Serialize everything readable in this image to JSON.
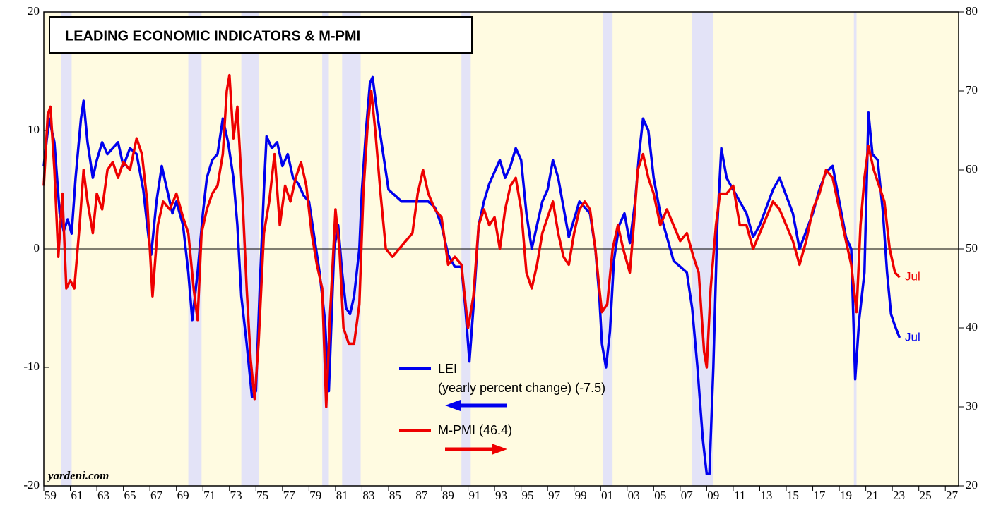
{
  "chart_data": {
    "type": "line",
    "title": "LEADING ECONOMIC INDICATORS & M-PMI",
    "source": "yardeni.com",
    "legend_text": [
      "LEI",
      "(yearly percent change) (-7.5)",
      "M-PMI (46.4)"
    ],
    "annotations": [
      "Jul",
      "Jul"
    ],
    "xlim": [
      1959,
      2028
    ],
    "xticks": [
      {
        "value": 1959,
        "label": "59"
      },
      {
        "value": 1961,
        "label": "61"
      },
      {
        "value": 1963,
        "label": "63"
      },
      {
        "value": 1965,
        "label": "65"
      },
      {
        "value": 1967,
        "label": "67"
      },
      {
        "value": 1969,
        "label": "69"
      },
      {
        "value": 1971,
        "label": "71"
      },
      {
        "value": 1973,
        "label": "73"
      },
      {
        "value": 1975,
        "label": "75"
      },
      {
        "value": 1977,
        "label": "77"
      },
      {
        "value": 1979,
        "label": "79"
      },
      {
        "value": 1981,
        "label": "81"
      },
      {
        "value": 1983,
        "label": "83"
      },
      {
        "value": 1985,
        "label": "85"
      },
      {
        "value": 1987,
        "label": "87"
      },
      {
        "value": 1989,
        "label": "89"
      },
      {
        "value": 1991,
        "label": "91"
      },
      {
        "value": 1993,
        "label": "93"
      },
      {
        "value": 1995,
        "label": "95"
      },
      {
        "value": 1997,
        "label": "97"
      },
      {
        "value": 1999,
        "label": "99"
      },
      {
        "value": 2001,
        "label": "01"
      },
      {
        "value": 2003,
        "label": "03"
      },
      {
        "value": 2005,
        "label": "05"
      },
      {
        "value": 2007,
        "label": "07"
      },
      {
        "value": 2009,
        "label": "09"
      },
      {
        "value": 2011,
        "label": "11"
      },
      {
        "value": 2013,
        "label": "13"
      },
      {
        "value": 2015,
        "label": "15"
      },
      {
        "value": 2017,
        "label": "17"
      },
      {
        "value": 2019,
        "label": "19"
      },
      {
        "value": 2021,
        "label": "21"
      },
      {
        "value": 2023,
        "label": "23"
      },
      {
        "value": 2025,
        "label": "25"
      },
      {
        "value": 2027,
        "label": "27"
      }
    ],
    "ylim": [
      -20,
      20
    ],
    "yticks": [
      -20,
      -10,
      0,
      10,
      20
    ],
    "y2lim": [
      20,
      80
    ],
    "y2ticks": [
      20,
      30,
      40,
      50,
      60,
      70,
      80
    ],
    "background_color": "#fffbe1",
    "recession_color": "#e3e3f7",
    "recessions": [
      [
        1960.3,
        1961.1
      ],
      [
        1969.9,
        1970.9
      ],
      [
        1973.9,
        1975.2
      ],
      [
        1980.0,
        1980.5
      ],
      [
        1981.5,
        1982.9
      ],
      [
        1990.5,
        1991.2
      ],
      [
        2001.2,
        2001.9
      ],
      [
        2007.9,
        2009.5
      ],
      [
        2020.1,
        2020.3
      ]
    ],
    "series": [
      {
        "name": "LEI",
        "color": "#0000ee",
        "axis": "y",
        "x": [
          1959.0,
          1959.4,
          1959.8,
          1960.2,
          1960.5,
          1960.8,
          1961.1,
          1961.4,
          1961.8,
          1962.0,
          1962.3,
          1962.7,
          1963.0,
          1963.4,
          1963.8,
          1964.2,
          1964.6,
          1965.0,
          1965.5,
          1966.0,
          1966.5,
          1966.9,
          1967.1,
          1967.5,
          1967.9,
          1968.3,
          1968.7,
          1969.0,
          1969.5,
          1969.9,
          1970.2,
          1970.6,
          1971.0,
          1971.3,
          1971.7,
          1972.1,
          1972.5,
          1972.9,
          1973.3,
          1973.6,
          1973.9,
          1974.3,
          1974.7,
          1975.0,
          1975.3,
          1975.6,
          1975.8,
          1976.2,
          1976.6,
          1977.0,
          1977.4,
          1977.8,
          1978.2,
          1978.6,
          1979.0,
          1979.4,
          1979.8,
          1980.2,
          1980.5,
          1980.9,
          1981.2,
          1981.5,
          1981.8,
          1982.1,
          1982.4,
          1982.8,
          1983.0,
          1983.3,
          1983.6,
          1983.8,
          1984.2,
          1984.6,
          1985.0,
          1985.5,
          1986.0,
          1986.5,
          1987.0,
          1987.5,
          1988.0,
          1988.5,
          1989.0,
          1989.5,
          1990.0,
          1990.5,
          1990.8,
          1991.1,
          1991.4,
          1991.8,
          1992.2,
          1992.6,
          1993.0,
          1993.4,
          1993.8,
          1994.2,
          1994.6,
          1995.0,
          1995.4,
          1995.8,
          1996.2,
          1996.6,
          1997.0,
          1997.4,
          1997.8,
          1998.2,
          1998.6,
          1999.0,
          1999.4,
          1999.8,
          2000.2,
          2000.6,
          2000.9,
          2001.1,
          2001.4,
          2001.7,
          2002.0,
          2002.4,
          2002.8,
          2003.2,
          2003.6,
          2003.9,
          2004.2,
          2004.6,
          2005.0,
          2005.5,
          2006.0,
          2006.5,
          2007.0,
          2007.5,
          2007.9,
          2008.3,
          2008.7,
          2009.0,
          2009.2,
          2009.5,
          2009.8,
          2010.1,
          2010.5,
          2011.0,
          2011.5,
          2012.0,
          2012.5,
          2013.0,
          2013.5,
          2014.0,
          2014.5,
          2015.0,
          2015.5,
          2016.0,
          2016.5,
          2017.0,
          2017.5,
          2018.0,
          2018.5,
          2019.0,
          2019.5,
          2019.9,
          2020.2,
          2020.5,
          2020.9,
          2021.2,
          2021.5,
          2021.9,
          2022.3,
          2022.6,
          2022.9,
          2023.2,
          2023.55
        ],
        "values": [
          7,
          11,
          9,
          3,
          1.5,
          2.5,
          1.3,
          6,
          11,
          12.5,
          9,
          6,
          7.5,
          9,
          8,
          8.5,
          9,
          7,
          8.5,
          8,
          5,
          1,
          -0.5,
          4,
          7,
          5,
          3,
          4,
          2,
          -2,
          -6,
          -2,
          3,
          6,
          7.5,
          8,
          11,
          9,
          6,
          2,
          -4,
          -8,
          -12.5,
          -12,
          -3,
          5,
          9.5,
          8.5,
          9,
          7,
          8,
          6,
          5.5,
          4.5,
          4,
          1,
          -2,
          -6,
          -12,
          0,
          2,
          -2,
          -5,
          -5.5,
          -4,
          0,
          5,
          10,
          14,
          14.5,
          11,
          8,
          5,
          4.5,
          4,
          4,
          4,
          4,
          4,
          3.5,
          2,
          -0.5,
          -1.5,
          -1.5,
          -5,
          -9.5,
          -5,
          2,
          4,
          5.5,
          6.5,
          7.5,
          6,
          7,
          8.5,
          7.5,
          3,
          0,
          2,
          4,
          5,
          7.5,
          6,
          3.5,
          1,
          2.5,
          4,
          3.5,
          3,
          0,
          -4,
          -8,
          -10,
          -7,
          -1,
          2,
          3,
          0.5,
          4,
          8,
          11,
          10,
          6,
          3,
          1,
          -1,
          -1.5,
          -2,
          -5,
          -10,
          -16,
          -19,
          -19,
          -10,
          2,
          8.5,
          6,
          5,
          4,
          3,
          1,
          2,
          3.5,
          5,
          6,
          4.5,
          3,
          0,
          1.5,
          3,
          5,
          6.5,
          7,
          4,
          1,
          0,
          -11,
          -6,
          -2,
          11.5,
          8,
          7.5,
          3,
          -2,
          -5.5,
          -6.5,
          -7.5
        ]
      },
      {
        "name": "M-PMI",
        "color": "#ee0000",
        "axis": "y2",
        "x": [
          1959.0,
          1959.3,
          1959.5,
          1959.8,
          1960.1,
          1960.4,
          1960.7,
          1961.0,
          1961.3,
          1961.7,
          1962.0,
          1962.3,
          1962.7,
          1963.0,
          1963.4,
          1963.8,
          1964.2,
          1964.6,
          1965.0,
          1965.5,
          1966.0,
          1966.4,
          1966.8,
          1967.2,
          1967.6,
          1968.0,
          1968.5,
          1969.0,
          1969.5,
          1969.9,
          1970.3,
          1970.6,
          1970.9,
          1971.3,
          1971.7,
          1972.1,
          1972.5,
          1972.8,
          1973.0,
          1973.3,
          1973.6,
          1974.0,
          1974.3,
          1974.6,
          1974.9,
          1975.2,
          1975.6,
          1976.0,
          1976.4,
          1976.8,
          1977.2,
          1977.6,
          1978.0,
          1978.4,
          1978.8,
          1979.2,
          1979.6,
          1980.0,
          1980.3,
          1980.6,
          1981.0,
          1981.3,
          1981.6,
          1982.0,
          1982.4,
          1982.8,
          1983.1,
          1983.4,
          1983.7,
          1984.0,
          1984.4,
          1984.8,
          1985.3,
          1985.8,
          1986.3,
          1986.8,
          1987.2,
          1987.6,
          1988.0,
          1988.5,
          1989.0,
          1989.5,
          1990.0,
          1990.5,
          1991.0,
          1991.4,
          1991.8,
          1992.2,
          1992.6,
          1993.0,
          1993.4,
          1993.8,
          1994.2,
          1994.6,
          1995.0,
          1995.4,
          1995.8,
          1996.2,
          1996.6,
          1997.0,
          1997.4,
          1997.8,
          1998.2,
          1998.6,
          1999.0,
          1999.4,
          1999.8,
          2000.2,
          2000.6,
          2000.9,
          2001.1,
          2001.5,
          2001.9,
          2002.3,
          2002.7,
          2003.2,
          2003.5,
          2003.8,
          2004.2,
          2004.6,
          2005.0,
          2005.5,
          2006.0,
          2006.5,
          2007.0,
          2007.5,
          2008.0,
          2008.4,
          2008.8,
          2009.0,
          2009.3,
          2009.7,
          2010.0,
          2010.5,
          2011.0,
          2011.5,
          2012.0,
          2012.5,
          2013.0,
          2013.5,
          2014.0,
          2014.5,
          2015.0,
          2015.5,
          2016.0,
          2016.5,
          2017.0,
          2017.5,
          2018.0,
          2018.5,
          2019.0,
          2019.5,
          2019.9,
          2020.3,
          2020.6,
          2020.9,
          2021.2,
          2021.6,
          2022.0,
          2022.4,
          2022.8,
          2023.2,
          2023.55
        ],
        "values": [
          58,
          67,
          68,
          60,
          49,
          57,
          45,
          46,
          45,
          53,
          60,
          56,
          52,
          57,
          55,
          60,
          61,
          59,
          61,
          60,
          64,
          62,
          56,
          44,
          53,
          56,
          55,
          57,
          54,
          52,
          45,
          41,
          52,
          55,
          57,
          58,
          62,
          70,
          72,
          64,
          68,
          56,
          45,
          36,
          31,
          38,
          52,
          56,
          62,
          53,
          58,
          56,
          59,
          61,
          58,
          52,
          48,
          45,
          30,
          42,
          55,
          50,
          40,
          38,
          38,
          43,
          57,
          65,
          70,
          65,
          57,
          50,
          49,
          50,
          51,
          52,
          57,
          60,
          57,
          55,
          54,
          48,
          49,
          48,
          40,
          44,
          53,
          55,
          53,
          54,
          50,
          55,
          58,
          59,
          55,
          47,
          45,
          48,
          52,
          54,
          56,
          52,
          49,
          48,
          52,
          55,
          56,
          55,
          50,
          45,
          42,
          43,
          50,
          53,
          50,
          47,
          53,
          60,
          62,
          59,
          57,
          53,
          55,
          53,
          51,
          52,
          49,
          47,
          37,
          35,
          45,
          53,
          57,
          57,
          58,
          53,
          53,
          50,
          52,
          54,
          56,
          55,
          53,
          51,
          48,
          51,
          55,
          57,
          60,
          59,
          55,
          51,
          48,
          42,
          53,
          59,
          63,
          60,
          58,
          56,
          50,
          47,
          46.4
        ]
      }
    ]
  }
}
